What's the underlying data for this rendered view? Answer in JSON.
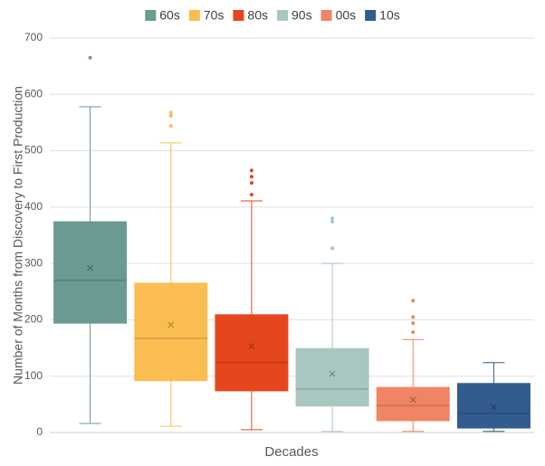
{
  "chart_data": {
    "type": "box",
    "x_label": "Decades",
    "y_label": "Number of Months from Discovery to First Production",
    "ylim": [
      0,
      700
    ],
    "yticks": [
      0,
      100,
      200,
      300,
      400,
      500,
      600,
      700
    ],
    "grid": true,
    "legend": "top",
    "series": [
      {
        "name": "60s",
        "color": "#6a9a91",
        "whisker_low": 16,
        "q1": 194,
        "median": 270,
        "q3": 374,
        "whisker_high": 578,
        "mean": 292,
        "outliers": [
          665
        ]
      },
      {
        "name": "70s",
        "color": "#fbbd52",
        "whisker_low": 11,
        "q1": 92,
        "median": 167,
        "q3": 265,
        "whisker_high": 514,
        "mean": 191,
        "outliers": [
          568,
          562,
          544
        ]
      },
      {
        "name": "80s",
        "color": "#e5461e",
        "whisker_low": 5,
        "q1": 74,
        "median": 124,
        "q3": 209,
        "whisker_high": 411,
        "mean": 153,
        "outliers": [
          465,
          454,
          443,
          422
        ]
      },
      {
        "name": "90s",
        "color": "#a9c7c1",
        "whisker_low": 2,
        "q1": 47,
        "median": 77,
        "q3": 149,
        "whisker_high": 300,
        "mean": 104,
        "outliers": [
          380,
          374,
          327
        ]
      },
      {
        "name": "00s",
        "color": "#ef8563",
        "whisker_low": 2,
        "q1": 21,
        "median": 48,
        "q3": 80,
        "whisker_high": 165,
        "mean": 58,
        "outliers": [
          234,
          205,
          194,
          178
        ]
      },
      {
        "name": "10s",
        "color": "#325b8e",
        "whisker_low": 2,
        "q1": 8,
        "median": 34,
        "q3": 87,
        "whisker_high": 124,
        "mean": 45,
        "outliers": []
      }
    ]
  }
}
